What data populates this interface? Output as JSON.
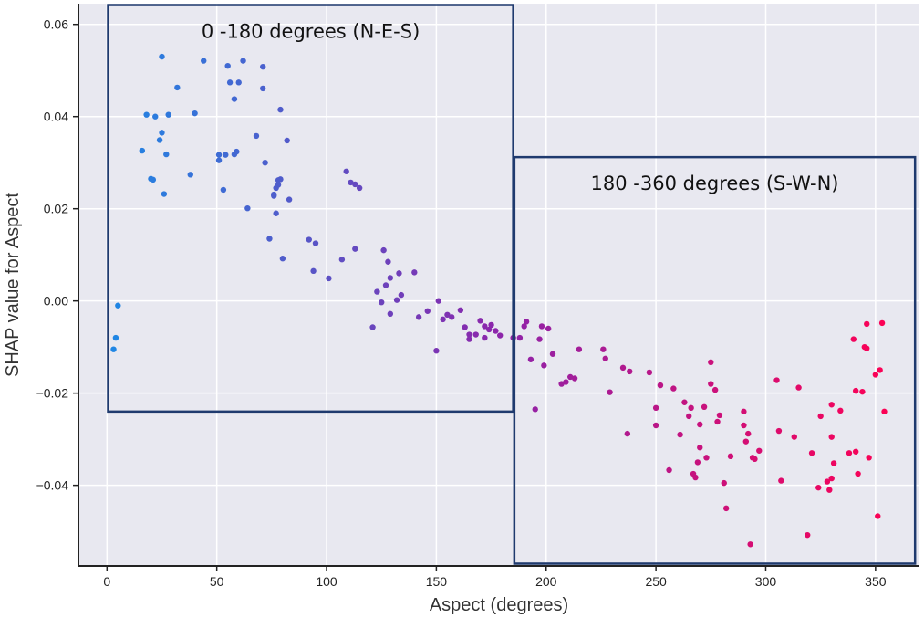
{
  "chart_data": {
    "type": "scatter",
    "xlabel": "Aspect (degrees)",
    "ylabel": "SHAP value for Aspect",
    "xlim": [
      -13,
      370
    ],
    "ylim": [
      -0.0575,
      0.0645
    ],
    "xticks": [
      0,
      50,
      100,
      150,
      200,
      250,
      300,
      350
    ],
    "yticks": [
      -0.04,
      -0.02,
      0.0,
      0.02,
      0.04,
      0.06
    ],
    "ytick_labels": [
      "−0.04",
      "−0.02",
      "0.00",
      "0.02",
      "0.04",
      "0.06"
    ],
    "grid": true,
    "background": "#e8e8f0",
    "color_gradient": [
      "#1e88e5",
      "#8e24aa",
      "#ff0052"
    ],
    "annotations": [
      {
        "text": "0 -180 degrees (N-E-S)",
        "x0": 0.5,
        "x1": 185,
        "y0": -0.024,
        "y1": 0.0642
      },
      {
        "text": "180 -360 degrees (S-W-N)",
        "x0": 185.5,
        "x1": 368,
        "y0": -0.057,
        "y1": 0.0312
      }
    ],
    "points": [
      [
        3,
        -0.0105
      ],
      [
        4,
        -0.008
      ],
      [
        5,
        -0.001
      ],
      [
        16,
        0.0326
      ],
      [
        18,
        0.0404
      ],
      [
        20,
        0.0265
      ],
      [
        21,
        0.0263
      ],
      [
        22,
        0.04
      ],
      [
        24,
        0.0349
      ],
      [
        25,
        0.0365
      ],
      [
        25,
        0.053
      ],
      [
        26,
        0.0232
      ],
      [
        27,
        0.0318
      ],
      [
        28,
        0.0404
      ],
      [
        32,
        0.0463
      ],
      [
        38,
        0.0274
      ],
      [
        40,
        0.0407
      ],
      [
        44,
        0.0521
      ],
      [
        51,
        0.0305
      ],
      [
        51,
        0.0317
      ],
      [
        53,
        0.0241
      ],
      [
        54,
        0.0317
      ],
      [
        55,
        0.051
      ],
      [
        56,
        0.0474
      ],
      [
        58,
        0.0318
      ],
      [
        58,
        0.0438
      ],
      [
        59,
        0.0324
      ],
      [
        60,
        0.0474
      ],
      [
        62,
        0.0521
      ],
      [
        64,
        0.0201
      ],
      [
        68,
        0.0358
      ],
      [
        71,
        0.0508
      ],
      [
        71,
        0.0461
      ],
      [
        72,
        0.03
      ],
      [
        74,
        0.0135
      ],
      [
        76,
        0.0231
      ],
      [
        76,
        0.0228
      ],
      [
        77,
        0.019
      ],
      [
        77,
        0.0245
      ],
      [
        78,
        0.0252
      ],
      [
        78,
        0.0262
      ],
      [
        79,
        0.0415
      ],
      [
        79,
        0.0264
      ],
      [
        80,
        0.0092
      ],
      [
        82,
        0.0348
      ],
      [
        83,
        0.022
      ],
      [
        92,
        0.0133
      ],
      [
        94,
        0.0065
      ],
      [
        95,
        0.0125
      ],
      [
        101,
        0.0049
      ],
      [
        107,
        0.009
      ],
      [
        109,
        0.0281
      ],
      [
        111,
        0.0257
      ],
      [
        113,
        0.0253
      ],
      [
        113,
        0.0113
      ],
      [
        115,
        0.0245
      ],
      [
        121,
        -0.0057
      ],
      [
        123,
        0.002
      ],
      [
        125,
        -0.0003
      ],
      [
        126,
        0.011
      ],
      [
        127,
        0.0034
      ],
      [
        128,
        0.0085
      ],
      [
        129,
        0.005
      ],
      [
        129,
        -0.0028
      ],
      [
        132,
        0.0002
      ],
      [
        133,
        0.006
      ],
      [
        134,
        0.0013
      ],
      [
        140,
        0.0062
      ],
      [
        142,
        -0.0035
      ],
      [
        146,
        -0.0022
      ],
      [
        150,
        -0.0108
      ],
      [
        151,
        0.0
      ],
      [
        153,
        -0.004
      ],
      [
        155,
        -0.003
      ],
      [
        157,
        -0.0035
      ],
      [
        161,
        -0.002
      ],
      [
        163,
        -0.0057
      ],
      [
        165,
        -0.0083
      ],
      [
        165,
        -0.0073
      ],
      [
        168,
        -0.0073
      ],
      [
        170,
        -0.0043
      ],
      [
        172,
        -0.008
      ],
      [
        172,
        -0.0055
      ],
      [
        174,
        -0.0062
      ],
      [
        175,
        -0.0052
      ],
      [
        177,
        -0.0065
      ],
      [
        179,
        -0.0075
      ],
      [
        185,
        -0.008
      ],
      [
        188,
        -0.008
      ],
      [
        190,
        -0.0055
      ],
      [
        191,
        -0.0045
      ],
      [
        193,
        -0.0127
      ],
      [
        195,
        -0.0235
      ],
      [
        197,
        -0.0083
      ],
      [
        198,
        -0.0055
      ],
      [
        199,
        -0.014
      ],
      [
        201,
        -0.006
      ],
      [
        203,
        -0.0115
      ],
      [
        207,
        -0.018
      ],
      [
        209,
        -0.0176
      ],
      [
        211,
        -0.0165
      ],
      [
        213,
        -0.0168
      ],
      [
        215,
        -0.0105
      ],
      [
        226,
        -0.0105
      ],
      [
        227,
        -0.0125
      ],
      [
        229,
        -0.0198
      ],
      [
        235,
        -0.0145
      ],
      [
        237,
        -0.0288
      ],
      [
        238,
        -0.0153
      ],
      [
        247,
        -0.0155
      ],
      [
        250,
        -0.0232
      ],
      [
        250,
        -0.027
      ],
      [
        252,
        -0.0183
      ],
      [
        256,
        -0.0367
      ],
      [
        258,
        -0.019
      ],
      [
        261,
        -0.029
      ],
      [
        263,
        -0.022
      ],
      [
        265,
        -0.025
      ],
      [
        266,
        -0.0232
      ],
      [
        267,
        -0.0375
      ],
      [
        268,
        -0.0383
      ],
      [
        269,
        -0.035
      ],
      [
        270,
        -0.0318
      ],
      [
        270,
        -0.0268
      ],
      [
        272,
        -0.023
      ],
      [
        273,
        -0.034
      ],
      [
        275,
        -0.018
      ],
      [
        275,
        -0.0133
      ],
      [
        277,
        -0.0193
      ],
      [
        278,
        -0.0262
      ],
      [
        279,
        -0.0248
      ],
      [
        281,
        -0.0395
      ],
      [
        282,
        -0.045
      ],
      [
        284,
        -0.0337
      ],
      [
        290,
        -0.024
      ],
      [
        290,
        -0.027
      ],
      [
        291,
        -0.0305
      ],
      [
        292,
        -0.0288
      ],
      [
        293,
        -0.0528
      ],
      [
        294,
        -0.034
      ],
      [
        295,
        -0.0343
      ],
      [
        297,
        -0.0325
      ],
      [
        305,
        -0.0172
      ],
      [
        306,
        -0.0282
      ],
      [
        307,
        -0.039
      ],
      [
        313,
        -0.0295
      ],
      [
        315,
        -0.0188
      ],
      [
        319,
        -0.0508
      ],
      [
        321,
        -0.033
      ],
      [
        324,
        -0.0405
      ],
      [
        325,
        -0.025
      ],
      [
        328,
        -0.0392
      ],
      [
        329,
        -0.041
      ],
      [
        330,
        -0.0385
      ],
      [
        330,
        -0.0295
      ],
      [
        330,
        -0.0225
      ],
      [
        331,
        -0.0352
      ],
      [
        334,
        -0.0238
      ],
      [
        338,
        -0.033
      ],
      [
        340,
        -0.0083
      ],
      [
        341,
        -0.0195
      ],
      [
        341,
        -0.0327
      ],
      [
        342,
        -0.0375
      ],
      [
        344,
        -0.0197
      ],
      [
        345,
        -0.01
      ],
      [
        346,
        -0.005
      ],
      [
        346,
        -0.0103
      ],
      [
        347,
        -0.034
      ],
      [
        350,
        -0.016
      ],
      [
        351,
        -0.0467
      ],
      [
        352,
        -0.015
      ],
      [
        353,
        -0.0048
      ],
      [
        354,
        -0.024
      ]
    ]
  }
}
